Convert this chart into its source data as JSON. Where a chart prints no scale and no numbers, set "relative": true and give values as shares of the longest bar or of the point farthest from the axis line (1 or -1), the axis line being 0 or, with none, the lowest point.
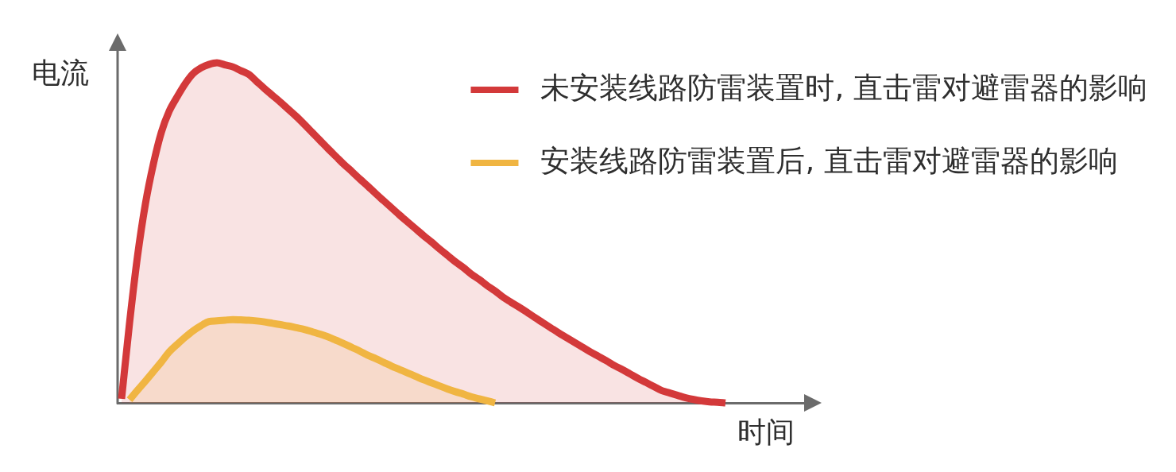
{
  "chart_data": {
    "type": "area",
    "relative": true,
    "xlabel": "时间",
    "ylabel": "电流",
    "legend": "top right",
    "categories": [
      null,
      null,
      null,
      null,
      null,
      null,
      null,
      null,
      null,
      null,
      null,
      null,
      null,
      null,
      null,
      null,
      null,
      null,
      null,
      null,
      null,
      null,
      null,
      null,
      null,
      null,
      null,
      null,
      null,
      null,
      null,
      null,
      null,
      null,
      null,
      null,
      null,
      null,
      null,
      null,
      null,
      null,
      null,
      null,
      null,
      null,
      null,
      null,
      null,
      null,
      null,
      null,
      null,
      null,
      null,
      null,
      null,
      null,
      null,
      null,
      null,
      null,
      null,
      null,
      null,
      null,
      null,
      null,
      null,
      null,
      null,
      null,
      null,
      null,
      null,
      null,
      null,
      null,
      null,
      null,
      null,
      null,
      null,
      null,
      null,
      null,
      null,
      null
    ],
    "series": [
      {
        "name": "未安装线路防雷装置时, 直击雷对避雷器的影响",
        "color": "#d3393a",
        "values": [
          0.012,
          0.234,
          0.43,
          0.585,
          0.702,
          0.795,
          0.858,
          0.9,
          0.938,
          0.968,
          0.985,
          0.995,
          1,
          0.994,
          0.988,
          0.977,
          0.966,
          0.945,
          0.924,
          0.904,
          0.884,
          0.863,
          0.842,
          0.819,
          0.795,
          0.771,
          0.747,
          0.724,
          0.701,
          0.68,
          0.658,
          0.637,
          0.615,
          0.594,
          0.573,
          0.552,
          0.532,
          0.512,
          0.492,
          0.473,
          0.453,
          0.434,
          0.415,
          0.398,
          0.379,
          0.363,
          0.345,
          0.329,
          0.311,
          0.296,
          0.282,
          0.267,
          0.251,
          0.236,
          0.221,
          0.206,
          0.192,
          0.178,
          0.164,
          0.15,
          0.137,
          0.124,
          0.11,
          0.098,
          0.085,
          0.072,
          0.06,
          0.048,
          0.036,
          0.029,
          0.022,
          0.015,
          0.01,
          0.006,
          0.003,
          0.002,
          0,
          null,
          null,
          null,
          null,
          null,
          null,
          null,
          null,
          null,
          null,
          null
        ]
      },
      {
        "name": "安装线路防雷装置后, 直击雷对避雷器的影响",
        "color": "#f0b542",
        "values": [
          null,
          0.009,
          0.037,
          0.064,
          0.092,
          0.12,
          0.15,
          0.172,
          0.193,
          0.212,
          0.227,
          0.239,
          0.241,
          0.243,
          0.245,
          0.244,
          0.243,
          0.241,
          0.238,
          0.234,
          0.23,
          0.226,
          0.221,
          0.216,
          0.209,
          0.202,
          0.194,
          0.184,
          0.174,
          0.163,
          0.152,
          0.14,
          0.13,
          0.119,
          0.108,
          0.098,
          0.088,
          0.078,
          0.068,
          0.059,
          0.05,
          0.041,
          0.033,
          0.026,
          0.018,
          0.012,
          0.006,
          0,
          null,
          null,
          null,
          null,
          null,
          null,
          null,
          null,
          null,
          null,
          null,
          null,
          null,
          null,
          null,
          null,
          null,
          null,
          null,
          null,
          null,
          null,
          null,
          null,
          null,
          null,
          null,
          null,
          null,
          null,
          null,
          null,
          null,
          null,
          null,
          null,
          null,
          null,
          null,
          null
        ]
      }
    ]
  }
}
